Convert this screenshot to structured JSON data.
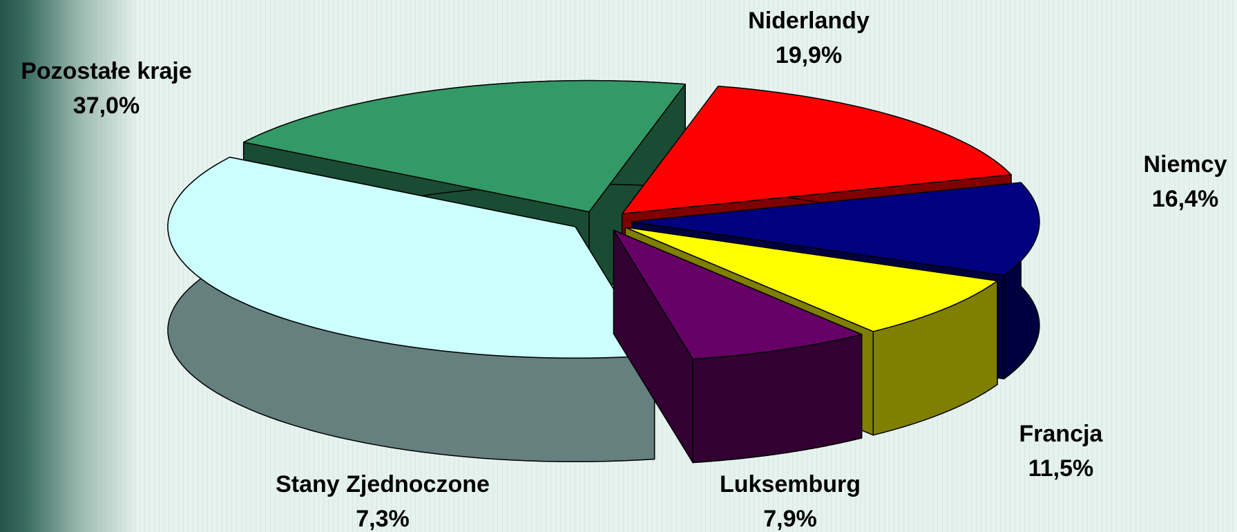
{
  "chart_data": {
    "type": "pie",
    "categories": [
      "Niderlandy",
      "Niemcy",
      "Francja",
      "Luksemburg",
      "Stany Zjednoczone",
      "Pozostałe kraje"
    ],
    "values": [
      19.9,
      16.4,
      11.5,
      7.9,
      7.3,
      37.0
    ],
    "value_labels": [
      "19,9%",
      "16,4%",
      "11,5%",
      "7,9%",
      "7,3%",
      "37,0%"
    ],
    "colors": [
      "#339966",
      "#ff0000",
      "#000080",
      "#ffff00",
      "#660066",
      "#ccffff"
    ],
    "three_d": true,
    "exploded": true
  }
}
